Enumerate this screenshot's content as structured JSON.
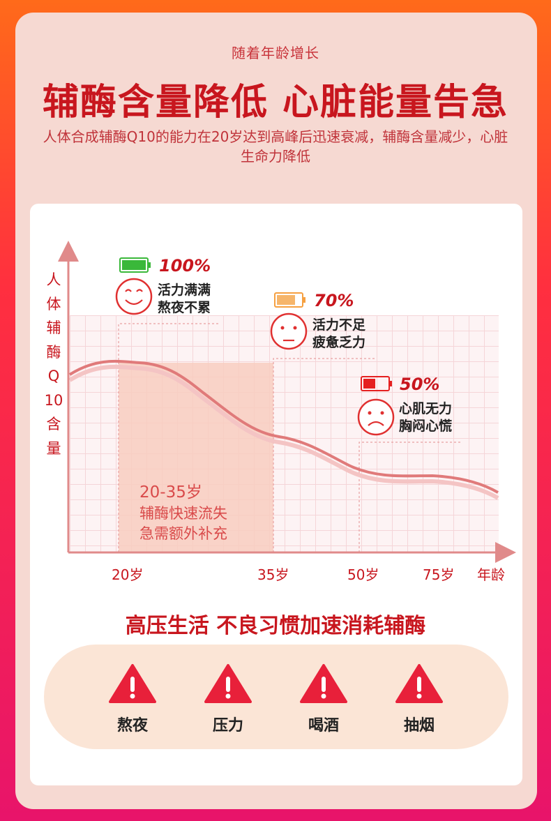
{
  "header": {
    "subtitle": "随着年龄增长",
    "headline": "辅酶含量降低 心脏能量告急",
    "description": "人体合成辅酶Q10的能力在20岁达到高峰后迅速衰减，辅酶含量减少，心脏生命力降低"
  },
  "chart_data": {
    "type": "line",
    "ylabel": "人体辅酶Q10含量",
    "xlabel": "年龄",
    "x_ticks": [
      "20岁",
      "35岁",
      "50岁",
      "75岁",
      "年龄"
    ],
    "series": [
      {
        "x": [
          20,
          35,
          50,
          75
        ],
        "y": [
          100,
          70,
          50,
          40
        ]
      }
    ],
    "highlight_range": {
      "from": "20岁",
      "to": "35岁"
    },
    "annotations": [
      {
        "percent": "100%",
        "line1": "活力满满",
        "line2": "熬夜不累",
        "battery_color": "#3ab83a",
        "mood": "happy"
      },
      {
        "percent": "70%",
        "line1": "活力不足",
        "line2": "疲惫乏力",
        "battery_color": "#f6b56a",
        "mood": "tired"
      },
      {
        "percent": "50%",
        "line1": "心肌无力",
        "line2": "胸闷心慌",
        "battery_color": "#e52020",
        "mood": "sad"
      }
    ],
    "range_title": "20-35岁",
    "range_line1": "辅酶快速流失",
    "range_line2": "急需额外补充"
  },
  "section2": {
    "title": "高压生活 不良习惯加速消耗辅酶",
    "habits": [
      {
        "label": "熬夜",
        "icon": "warning-icon"
      },
      {
        "label": "压力",
        "icon": "warning-icon"
      },
      {
        "label": "喝酒",
        "icon": "warning-icon"
      },
      {
        "label": "抽烟",
        "icon": "warning-icon"
      }
    ]
  },
  "colors": {
    "accent": "#c8161e",
    "background": "#f6d9d2",
    "curve": "#e07a7a"
  }
}
